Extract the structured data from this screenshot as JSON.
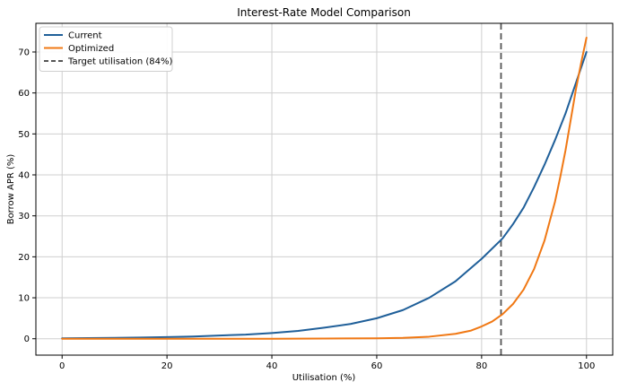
{
  "chart_data": {
    "type": "line",
    "title": "Interest-Rate Model Comparison",
    "xlabel": "Utilisation (%)",
    "ylabel": "Borrow APR (%)",
    "xlim": [
      -5,
      105
    ],
    "ylim": [
      -4,
      77
    ],
    "xticks": [
      0,
      20,
      40,
      60,
      80,
      100
    ],
    "yticks": [
      0,
      10,
      20,
      30,
      40,
      50,
      60,
      70
    ],
    "grid": true,
    "legend_position": "top-left",
    "series": [
      {
        "name": "Current",
        "color": "#1f5f99",
        "x": [
          0,
          5,
          10,
          15,
          20,
          25,
          30,
          35,
          40,
          45,
          50,
          55,
          60,
          65,
          70,
          75,
          80,
          84,
          86,
          88,
          90,
          92,
          94,
          96,
          98,
          100
        ],
        "y": [
          0.1,
          0.15,
          0.2,
          0.3,
          0.4,
          0.55,
          0.8,
          1.0,
          1.4,
          1.9,
          2.7,
          3.6,
          5.0,
          7.0,
          10.0,
          14.0,
          19.5,
          24.5,
          28.0,
          32.0,
          37.0,
          42.5,
          48.5,
          55.0,
          62.5,
          70.0
        ]
      },
      {
        "name": "Optimized",
        "color": "#f07814",
        "x": [
          0,
          10,
          20,
          30,
          40,
          50,
          60,
          65,
          70,
          75,
          78,
          80,
          82,
          84,
          86,
          88,
          90,
          92,
          94,
          95,
          96,
          97,
          98,
          99,
          100
        ],
        "y": [
          0,
          0,
          0,
          0,
          0,
          0.05,
          0.1,
          0.2,
          0.5,
          1.2,
          2.0,
          3.0,
          4.2,
          6.0,
          8.5,
          12.0,
          17.0,
          24.0,
          33.5,
          39.5,
          46.0,
          53.5,
          61.0,
          67.5,
          73.5
        ]
      }
    ],
    "reference_lines": [
      {
        "name": "Target utilisation (84%)",
        "x": 83.7,
        "color": "#555555",
        "style": "dashed"
      }
    ]
  }
}
